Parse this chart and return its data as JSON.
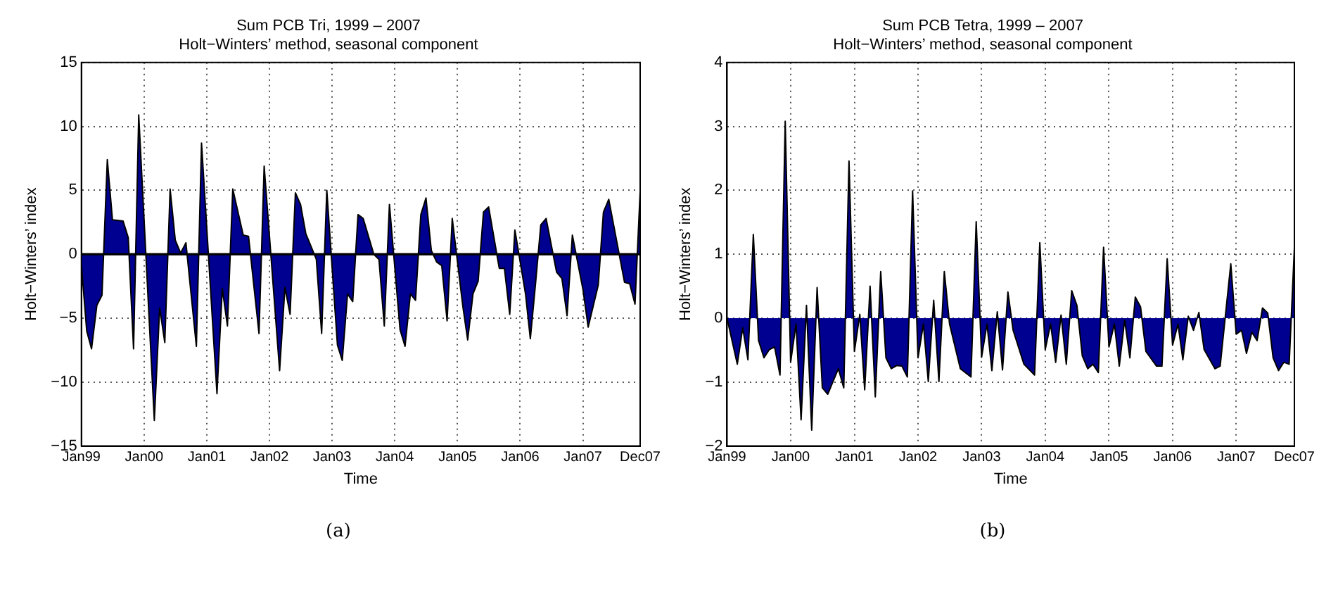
{
  "chart_data": [
    {
      "type": "area",
      "title": "Sum PCB Tri, 1999 – 2007",
      "subtitle": "Holt−Winters’ method, seasonal component",
      "xlabel": "Time",
      "ylabel": "Holt−Winters’ index",
      "annotations": [
        "(a)"
      ],
      "marker": "none",
      "grid": true,
      "ref_lines": [
        {
          "axis": "y",
          "value": 0,
          "color": "#000000"
        }
      ],
      "xlim": [
        "1999-01",
        "2007-12"
      ],
      "xticks": [
        {
          "value": "1999-01",
          "label": "Jan99"
        },
        {
          "value": "2000-01",
          "label": "Jan00"
        },
        {
          "value": "2001-01",
          "label": "Jan01"
        },
        {
          "value": "2002-01",
          "label": "Jan02"
        },
        {
          "value": "2003-01",
          "label": "Jan03"
        },
        {
          "value": "2004-01",
          "label": "Jan04"
        },
        {
          "value": "2005-01",
          "label": "Jan05"
        },
        {
          "value": "2006-01",
          "label": "Jan06"
        },
        {
          "value": "2007-01",
          "label": "Jan07"
        },
        {
          "value": "2007-12",
          "label": "Dec07"
        }
      ],
      "ylim": [
        -15,
        15
      ],
      "yticks": [
        -15,
        -10,
        -5,
        0,
        5,
        10,
        15
      ],
      "series": [
        {
          "color": "#000090",
          "x": [
            "1999-01",
            "1999-02",
            "1999-03",
            "1999-04",
            "1999-05",
            "1999-06",
            "1999-07",
            "1999-09",
            "1999-10",
            "1999-11",
            "1999-12",
            "2000-03",
            "2000-04",
            "2000-05",
            "2000-06",
            "2000-07",
            "2000-08",
            "2000-09",
            "2000-11",
            "2000-12",
            "2001-03",
            "2001-04",
            "2001-05",
            "2001-06",
            "2001-08",
            "2001-09",
            "2001-11",
            "2001-12",
            "2002-03",
            "2002-04",
            "2002-05",
            "2002-06",
            "2002-07",
            "2002-08",
            "2002-10",
            "2002-11",
            "2002-12",
            "2003-02",
            "2003-03",
            "2003-04",
            "2003-05",
            "2003-06",
            "2003-07",
            "2003-09",
            "2003-10",
            "2003-11",
            "2003-12",
            "2004-02",
            "2004-03",
            "2004-04",
            "2004-05",
            "2004-06",
            "2004-07",
            "2004-08",
            "2004-09",
            "2004-10",
            "2004-11",
            "2004-12",
            "2005-02",
            "2005-03",
            "2005-04",
            "2005-05",
            "2005-06",
            "2005-07",
            "2005-09",
            "2005-10",
            "2005-11",
            "2005-12",
            "2006-02",
            "2006-03",
            "2006-04",
            "2006-05",
            "2006-06",
            "2006-08",
            "2006-09",
            "2006-10",
            "2006-11",
            "2007-01",
            "2007-02",
            "2007-04",
            "2007-05",
            "2007-06",
            "2007-09",
            "2007-10",
            "2007-11",
            "2007-12"
          ],
          "values": [
            -0.8,
            -6,
            -7.4,
            -4,
            -3.2,
            7.4,
            2.7,
            2.6,
            1.3,
            -7.4,
            10.9,
            -13,
            -4.2,
            -6.9,
            5.1,
            1.1,
            0.1,
            0.9,
            -7.2,
            8.7,
            -10.9,
            -2.7,
            -5.6,
            5.1,
            1.5,
            1.4,
            -6.2,
            6.9,
            -9.1,
            -2.6,
            -4.7,
            4.8,
            3.9,
            1.6,
            -0.4,
            -6.2,
            5.0,
            -7.1,
            -8.3,
            -3.1,
            -3.7,
            3.1,
            2.8,
            0,
            -0.4,
            -5.6,
            3.9,
            -5.9,
            -7.2,
            -3.1,
            -3.6,
            3.1,
            4.4,
            0.3,
            -0.6,
            -0.9,
            -5.2,
            2.8,
            -4.1,
            -6.7,
            -3.1,
            -2.1,
            3.3,
            3.7,
            -1.1,
            -1.1,
            -4.7,
            1.9,
            -3.1,
            -6.6,
            -2.2,
            2.3,
            2.8,
            -1.4,
            -1.9,
            -4.8,
            1.5,
            -2.7,
            -5.7,
            -2.4,
            3.3,
            4.3,
            -2.2,
            -2.3,
            -3.9,
            4.9
          ]
        }
      ]
    },
    {
      "type": "area",
      "title": "Sum PCB Tetra, 1999 – 2007",
      "subtitle": "Holt−Winters’ method, seasonal component",
      "xlabel": "Time",
      "ylabel": "Holt−Winters’ index",
      "annotations": [
        "(b)"
      ],
      "marker": "none",
      "grid": true,
      "xlim": [
        "1999-01",
        "2007-12"
      ],
      "xticks": [
        {
          "value": "1999-01",
          "label": "Jan99"
        },
        {
          "value": "2000-01",
          "label": "Jan00"
        },
        {
          "value": "2001-01",
          "label": "Jan01"
        },
        {
          "value": "2002-01",
          "label": "Jan02"
        },
        {
          "value": "2003-01",
          "label": "Jan03"
        },
        {
          "value": "2004-01",
          "label": "Jan04"
        },
        {
          "value": "2005-01",
          "label": "Jan05"
        },
        {
          "value": "2006-01",
          "label": "Jan06"
        },
        {
          "value": "2007-01",
          "label": "Jan07"
        },
        {
          "value": "2007-12",
          "label": "Dec07"
        }
      ],
      "ylim": [
        -2,
        4
      ],
      "yticks": [
        -2,
        -1,
        0,
        1,
        2,
        3,
        4
      ],
      "series": [
        {
          "color": "#000090",
          "x": [
            "1999-01",
            "1999-03",
            "1999-04",
            "1999-05",
            "1999-06",
            "1999-07",
            "1999-08",
            "1999-09",
            "1999-10",
            "1999-11",
            "1999-12",
            "2000-01",
            "2000-02",
            "2000-03",
            "2000-04",
            "2000-05",
            "2000-06",
            "2000-07",
            "2000-08",
            "2000-10",
            "2000-11",
            "2000-12",
            "2001-01",
            "2001-02",
            "2001-03",
            "2001-04",
            "2001-05",
            "2001-06",
            "2001-07",
            "2001-08",
            "2001-09",
            "2001-10",
            "2001-11",
            "2001-12",
            "2002-01",
            "2002-02",
            "2002-03",
            "2002-04",
            "2002-05",
            "2002-06",
            "2002-07",
            "2002-09",
            "2002-11",
            "2002-12",
            "2003-01",
            "2003-02",
            "2003-03",
            "2003-04",
            "2003-05",
            "2003-06",
            "2003-07",
            "2003-09",
            "2003-11",
            "2003-12",
            "2004-01",
            "2004-02",
            "2004-03",
            "2004-04",
            "2004-05",
            "2004-06",
            "2004-07",
            "2004-08",
            "2004-09",
            "2004-10",
            "2004-11",
            "2004-12",
            "2005-01",
            "2005-02",
            "2005-03",
            "2005-04",
            "2005-05",
            "2005-06",
            "2005-07",
            "2005-08",
            "2005-10",
            "2005-11",
            "2005-12",
            "2006-01",
            "2006-02",
            "2006-03",
            "2006-04",
            "2006-05",
            "2006-06",
            "2006-07",
            "2006-09",
            "2006-10",
            "2006-12",
            "2007-01",
            "2007-02",
            "2007-03",
            "2007-04",
            "2007-05",
            "2007-06",
            "2007-07",
            "2007-08",
            "2007-09",
            "2007-10",
            "2007-11",
            "2007-12"
          ],
          "values": [
            0,
            -0.72,
            -0.15,
            -0.65,
            1.31,
            -0.35,
            -0.62,
            -0.49,
            -0.45,
            -0.89,
            3.08,
            -0.69,
            -0.09,
            -1.59,
            0.2,
            -1.75,
            0.48,
            -1.09,
            -1.19,
            -0.79,
            -1.09,
            2.46,
            -0.52,
            0.06,
            -1.12,
            0.5,
            -1.23,
            0.73,
            -0.62,
            -0.79,
            -0.74,
            -0.75,
            -0.92,
            1.99,
            -0.62,
            -0.09,
            -0.99,
            0.28,
            -0.99,
            0.73,
            -0.09,
            -0.79,
            -0.92,
            1.51,
            -0.61,
            -0.09,
            -0.82,
            0.1,
            -0.81,
            0.41,
            -0.19,
            -0.72,
            -0.89,
            1.18,
            -0.49,
            -0.09,
            -0.69,
            0.05,
            -0.72,
            0.43,
            0.2,
            -0.59,
            -0.79,
            -0.72,
            -0.85,
            1.11,
            -0.45,
            -0.09,
            -0.75,
            -0.03,
            -0.62,
            0.33,
            0.18,
            -0.52,
            -0.75,
            -0.75,
            0.93,
            -0.42,
            -0.09,
            -0.65,
            0.03,
            -0.19,
            0.09,
            -0.49,
            -0.79,
            -0.75,
            0.85,
            -0.25,
            -0.19,
            -0.55,
            -0.22,
            -0.35,
            0.16,
            0.08,
            -0.62,
            -0.82,
            -0.69,
            -0.72,
            1.1
          ]
        }
      ]
    }
  ]
}
